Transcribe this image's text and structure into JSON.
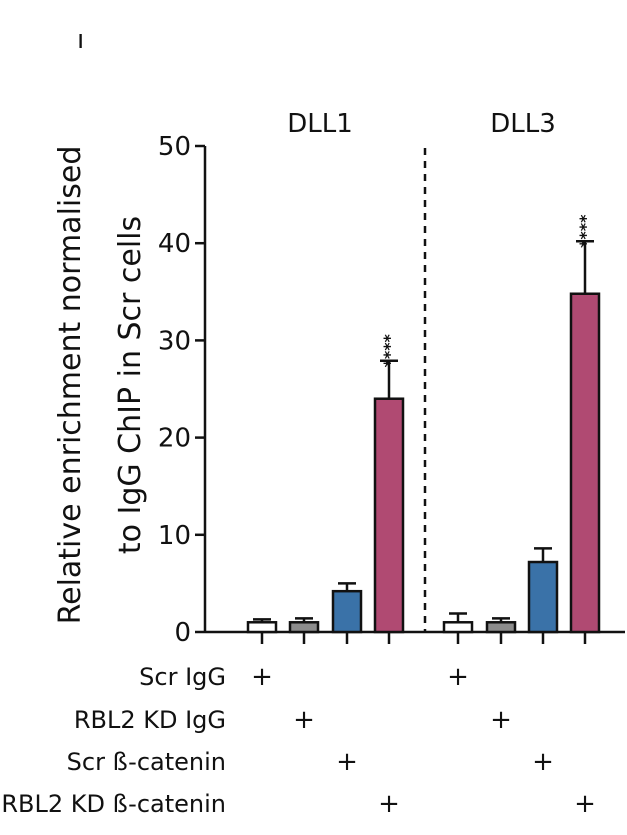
{
  "chart_data": {
    "type": "bar",
    "ylabel_lines": [
      "Relative enrichment normalised",
      "to IgG ChIP in Scr cells"
    ],
    "ylim": [
      0,
      50
    ],
    "yticks": [
      0,
      10,
      20,
      30,
      40,
      50
    ],
    "groups": [
      {
        "name": "DLL1",
        "bars": [
          {
            "value": 1.0,
            "error": 0.3,
            "sig": ""
          },
          {
            "value": 1.0,
            "error": 0.4,
            "sig": ""
          },
          {
            "value": 4.2,
            "error": 0.8,
            "sig": ""
          },
          {
            "value": 24.0,
            "error": 3.9,
            "sig": "****"
          }
        ]
      },
      {
        "name": "DLL3",
        "bars": [
          {
            "value": 1.0,
            "error": 0.9,
            "sig": ""
          },
          {
            "value": 1.0,
            "error": 0.4,
            "sig": ""
          },
          {
            "value": 7.2,
            "error": 1.4,
            "sig": ""
          },
          {
            "value": 34.8,
            "error": 5.4,
            "sig": "****"
          }
        ]
      }
    ],
    "conditions": [
      {
        "label": "Scr IgG",
        "color": "#ffffff"
      },
      {
        "label": "RBL2 KD IgG",
        "color": "#8c8c8c"
      },
      {
        "label": "Scr ß-catenin",
        "color": "#3a72a8"
      },
      {
        "label": "RBL2 KD ß-catenin",
        "color": "#b04a72"
      }
    ],
    "plus_symbol": "+",
    "stray_mark": "ı"
  }
}
